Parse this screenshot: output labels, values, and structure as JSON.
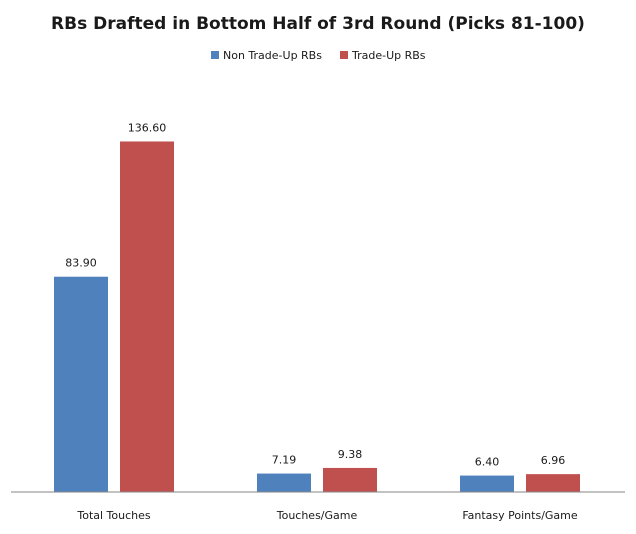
{
  "chart_data": {
    "type": "bar",
    "title": "RBs Drafted in Bottom Half of 3rd Round (Picks 81-100)",
    "categories": [
      "Total Touches",
      "Touches/Game",
      "Fantasy Points/Game"
    ],
    "series": [
      {
        "name": "Non Trade-Up RBs",
        "values": [
          83.9,
          7.19,
          6.4
        ],
        "labels": [
          "83.90",
          "7.19",
          "6.40"
        ],
        "color": "#4f81bd"
      },
      {
        "name": "Trade-Up RBs",
        "values": [
          136.6,
          9.38,
          6.96
        ],
        "labels": [
          "136.60",
          "9.38",
          "6.96"
        ],
        "color": "#c0504d"
      }
    ],
    "ylim": [
      0,
      160
    ],
    "legend_position": "top-center",
    "grid": false
  }
}
